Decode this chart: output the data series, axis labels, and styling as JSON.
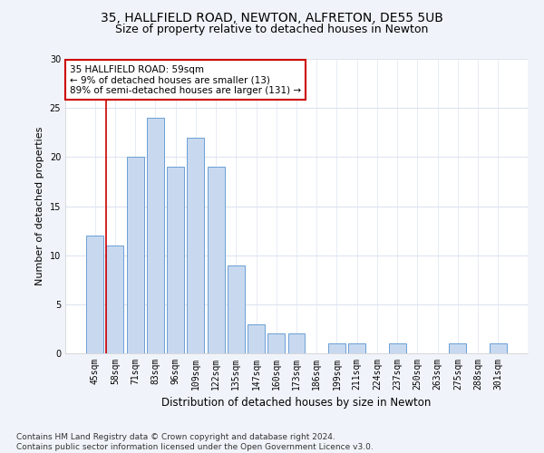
{
  "title1": "35, HALLFIELD ROAD, NEWTON, ALFRETON, DE55 5UB",
  "title2": "Size of property relative to detached houses in Newton",
  "xlabel": "Distribution of detached houses by size in Newton",
  "ylabel": "Number of detached properties",
  "categories": [
    "45sqm",
    "58sqm",
    "71sqm",
    "83sqm",
    "96sqm",
    "109sqm",
    "122sqm",
    "135sqm",
    "147sqm",
    "160sqm",
    "173sqm",
    "186sqm",
    "199sqm",
    "211sqm",
    "224sqm",
    "237sqm",
    "250sqm",
    "263sqm",
    "275sqm",
    "288sqm",
    "301sqm"
  ],
  "values": [
    12,
    11,
    20,
    24,
    19,
    22,
    19,
    9,
    3,
    2,
    2,
    0,
    1,
    1,
    0,
    1,
    0,
    0,
    1,
    0,
    1
  ],
  "bar_color": "#c8d9ef",
  "bar_edge_color": "#6b9fd4",
  "vline_color": "#cc0000",
  "vline_pos": 0.575,
  "annotation_text": "35 HALLFIELD ROAD: 59sqm\n← 9% of detached houses are smaller (13)\n89% of semi-detached houses are larger (131) →",
  "annotation_box_color": "#ffffff",
  "annotation_box_edge": "#cc0000",
  "ylim": [
    0,
    30
  ],
  "yticks": [
    0,
    5,
    10,
    15,
    20,
    25,
    30
  ],
  "bg_color": "#f0f4fa",
  "plot_bg_color": "#ffffff",
  "grid_color": "#dde4f0",
  "footnote": "Contains HM Land Registry data © Crown copyright and database right 2024.\nContains public sector information licensed under the Open Government Licence v3.0.",
  "title1_fontsize": 10,
  "title2_fontsize": 9,
  "xlabel_fontsize": 8.5,
  "ylabel_fontsize": 8,
  "tick_fontsize": 7,
  "footnote_fontsize": 6.5,
  "annot_fontsize": 7.5
}
